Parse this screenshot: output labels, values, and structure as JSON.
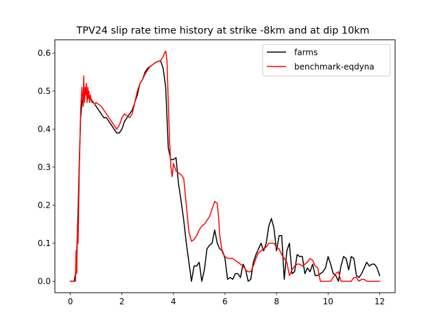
{
  "chart_data": {
    "type": "line",
    "title": "TPV24 slip rate time history at strike -8km and at dip 10km",
    "xlabel": "",
    "ylabel": "",
    "xlim": [
      -0.6,
      12.6
    ],
    "ylim": [
      -0.03,
      0.635
    ],
    "xticks": [
      0,
      2,
      4,
      6,
      8,
      10,
      12
    ],
    "yticks": [
      0.0,
      0.1,
      0.2,
      0.3,
      0.4,
      0.5,
      0.6
    ],
    "xtick_labels": [
      "0",
      "2",
      "4",
      "6",
      "8",
      "10",
      "12"
    ],
    "ytick_labels": [
      "0.0",
      "0.1",
      "0.2",
      "0.3",
      "0.4",
      "0.5",
      "0.6"
    ],
    "grid": false,
    "legend_position": "upper right",
    "series": [
      {
        "name": "farms",
        "color": "#000000",
        "x": [
          0,
          0.15,
          0.2,
          0.25,
          0.3,
          0.35,
          0.4,
          0.45,
          0.5,
          0.55,
          0.6,
          0.65,
          0.7,
          0.75,
          0.8,
          0.85,
          0.9,
          1.0,
          1.1,
          1.2,
          1.3,
          1.4,
          1.5,
          1.6,
          1.7,
          1.8,
          1.9,
          2.0,
          2.1,
          2.2,
          2.3,
          2.4,
          2.5,
          2.6,
          2.7,
          2.8,
          2.9,
          3.0,
          3.1,
          3.2,
          3.3,
          3.4,
          3.5,
          3.6,
          3.7,
          3.8,
          3.9,
          4.0,
          4.1,
          4.2,
          4.3,
          4.4,
          4.5,
          4.6,
          4.7,
          4.8,
          4.9,
          5.0,
          5.1,
          5.2,
          5.3,
          5.4,
          5.5,
          5.6,
          5.7,
          5.8,
          5.9,
          6.0,
          6.1,
          6.2,
          6.3,
          6.4,
          6.5,
          6.6,
          6.7,
          6.8,
          6.9,
          7.0,
          7.1,
          7.2,
          7.3,
          7.4,
          7.5,
          7.6,
          7.7,
          7.8,
          7.9,
          8.0,
          8.1,
          8.2,
          8.3,
          8.4,
          8.5,
          8.6,
          8.7,
          8.8,
          8.9,
          9.0,
          9.1,
          9.2,
          9.3,
          9.4,
          9.5,
          9.6,
          9.7,
          9.8,
          9.9,
          10.0,
          10.1,
          10.2,
          10.3,
          10.4,
          10.5,
          10.6,
          10.7,
          10.8,
          10.9,
          11.0,
          11.1,
          11.2,
          11.3,
          11.4,
          11.5,
          11.6,
          11.7,
          11.8,
          11.9,
          12.0
        ],
        "y": [
          0.0,
          0.0,
          0.02,
          0.08,
          0.18,
          0.32,
          0.43,
          0.47,
          0.49,
          0.5,
          0.5,
          0.49,
          0.49,
          0.48,
          0.48,
          0.47,
          0.47,
          0.46,
          0.45,
          0.44,
          0.43,
          0.43,
          0.42,
          0.41,
          0.4,
          0.39,
          0.39,
          0.4,
          0.42,
          0.43,
          0.44,
          0.45,
          0.47,
          0.49,
          0.52,
          0.53,
          0.55,
          0.56,
          0.565,
          0.57,
          0.575,
          0.578,
          0.58,
          0.56,
          0.51,
          0.35,
          0.32,
          0.32,
          0.325,
          0.255,
          0.21,
          0.16,
          0.1,
          0.05,
          0.0,
          0.04,
          0.04,
          0.05,
          0.0,
          0.03,
          0.085,
          0.095,
          0.1,
          0.135,
          0.1,
          0.085,
          0.08,
          0.06,
          0.005,
          0.01,
          0.005,
          0.02,
          0.02,
          0.01,
          0.045,
          0.03,
          0.0,
          0.005,
          0.05,
          0.07,
          0.085,
          0.1,
          0.08,
          0.1,
          0.145,
          0.165,
          0.14,
          0.08,
          0.12,
          0.12,
          0.005,
          0.08,
          0.1,
          0.02,
          0.025,
          0.07,
          0.065,
          0.065,
          0.02,
          0.035,
          0.025,
          0.045,
          0.015,
          0.015,
          0.02,
          0.025,
          0.035,
          0.065,
          0.045,
          0.02,
          0.015,
          0.0,
          0.04,
          0.065,
          0.06,
          0.03,
          0.065,
          0.06,
          0.015,
          0.01,
          0.02,
          0.035,
          0.05,
          0.04,
          0.045,
          0.045,
          0.035,
          0.015
        ]
      },
      {
        "name": "benchmark-eqdyna",
        "color": "#ff0000",
        "x": [
          0,
          0.2,
          0.22,
          0.25,
          0.28,
          0.3,
          0.35,
          0.4,
          0.45,
          0.5,
          0.52,
          0.55,
          0.58,
          0.6,
          0.62,
          0.65,
          0.68,
          0.7,
          0.72,
          0.75,
          0.78,
          0.8,
          0.85,
          0.9,
          0.95,
          1.0,
          1.1,
          1.2,
          1.3,
          1.4,
          1.5,
          1.6,
          1.7,
          1.8,
          1.9,
          2.0,
          2.1,
          2.2,
          2.3,
          2.4,
          2.5,
          2.6,
          2.7,
          2.8,
          2.9,
          3.0,
          3.1,
          3.2,
          3.3,
          3.4,
          3.5,
          3.6,
          3.65,
          3.7,
          3.75,
          3.8,
          3.85,
          3.9,
          3.95,
          4.0,
          4.05,
          4.1,
          4.2,
          4.3,
          4.4,
          4.5,
          4.6,
          4.7,
          4.8,
          4.9,
          5.0,
          5.1,
          5.2,
          5.3,
          5.4,
          5.5,
          5.6,
          5.7,
          5.75,
          5.8,
          5.9,
          6.0,
          6.1,
          6.2,
          6.3,
          6.4,
          6.5,
          6.6,
          6.7,
          6.8,
          6.9,
          7.0,
          7.1,
          7.2,
          7.3,
          7.4,
          7.5,
          7.6,
          7.7,
          7.8,
          7.9,
          8.0,
          8.1,
          8.2,
          8.3,
          8.4,
          8.5,
          8.6,
          8.7,
          8.8,
          8.9,
          9.0,
          9.1,
          9.2,
          9.3,
          9.4,
          9.5,
          9.6,
          9.7,
          9.8,
          9.9,
          10.0,
          10.1,
          10.2,
          10.3,
          10.4,
          10.5,
          10.6,
          10.7,
          10.8,
          10.9,
          11.0,
          11.1,
          11.2,
          11.3,
          11.4,
          11.5,
          11.6,
          11.7,
          11.8,
          11.9,
          12.0
        ],
        "y": [
          0.0,
          0.0,
          0.08,
          0.02,
          0.16,
          0.1,
          0.3,
          0.45,
          0.51,
          0.46,
          0.54,
          0.47,
          0.51,
          0.49,
          0.52,
          0.47,
          0.51,
          0.48,
          0.5,
          0.47,
          0.49,
          0.48,
          0.475,
          0.47,
          0.465,
          0.47,
          0.465,
          0.46,
          0.45,
          0.44,
          0.43,
          0.42,
          0.41,
          0.4,
          0.41,
          0.43,
          0.44,
          0.435,
          0.43,
          0.44,
          0.47,
          0.5,
          0.52,
          0.53,
          0.545,
          0.555,
          0.565,
          0.57,
          0.575,
          0.578,
          0.58,
          0.59,
          0.6,
          0.605,
          0.58,
          0.47,
          0.37,
          0.3,
          0.275,
          0.31,
          0.3,
          0.29,
          0.285,
          0.28,
          0.27,
          0.2,
          0.13,
          0.105,
          0.11,
          0.12,
          0.135,
          0.145,
          0.15,
          0.16,
          0.17,
          0.19,
          0.21,
          0.205,
          0.17,
          0.12,
          0.075,
          0.065,
          0.06,
          0.06,
          0.06,
          0.055,
          0.05,
          0.045,
          0.04,
          0.03,
          0.025,
          0.025,
          0.04,
          0.06,
          0.075,
          0.08,
          0.085,
          0.09,
          0.1,
          0.1,
          0.1,
          0.09,
          0.085,
          0.07,
          0.06,
          0.05,
          0.015,
          0.03,
          0.04,
          0.045,
          0.045,
          0.04,
          0.045,
          0.05,
          0.06,
          0.055,
          0.04,
          0.035,
          0.0,
          0.0,
          0.0,
          0.0,
          0.0,
          0.01,
          0.02,
          0.025,
          0.0,
          0.0,
          0.0,
          0.0,
          0.0,
          0.01,
          0.01,
          0.0,
          0.005,
          0.005,
          0.0,
          0.0,
          0.0,
          0.0,
          0.0,
          0.0
        ]
      }
    ]
  }
}
